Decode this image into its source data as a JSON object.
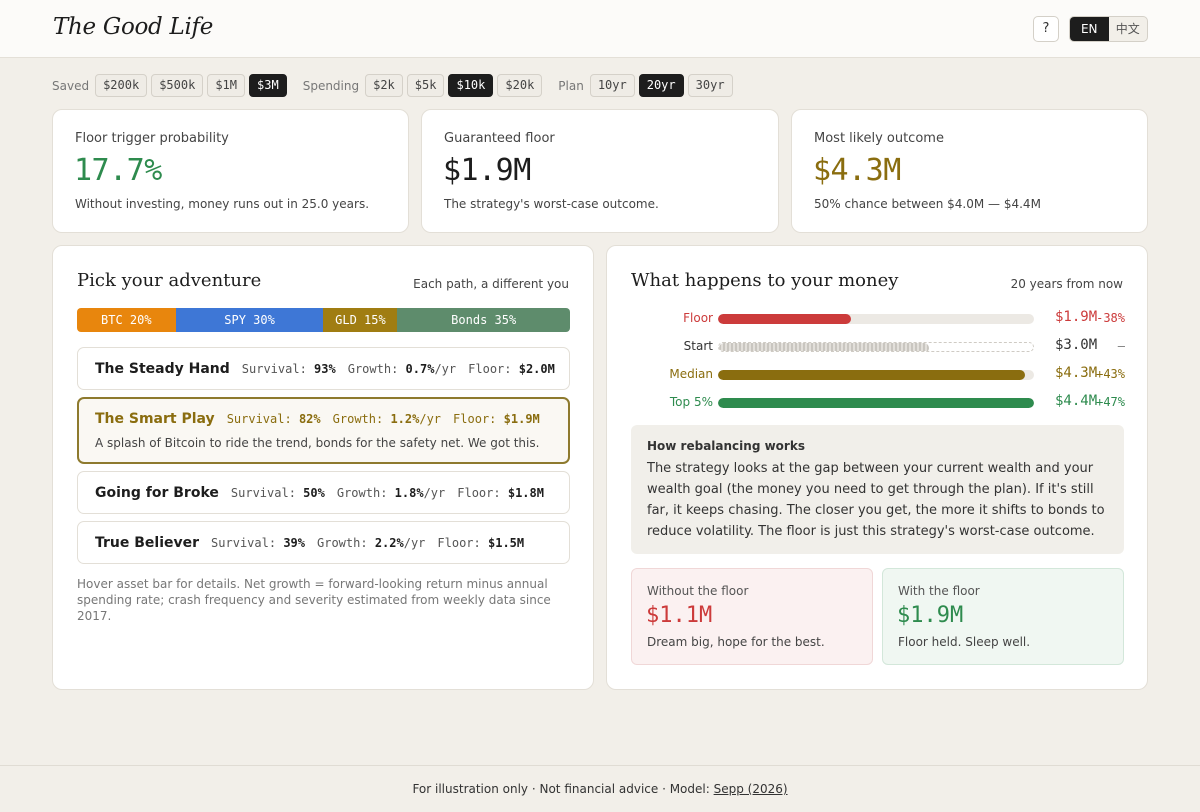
{
  "app": {
    "title": "The Good Life"
  },
  "header": {
    "help_label": "?",
    "languages": [
      "EN",
      "中文"
    ],
    "active_language": "EN"
  },
  "controls": {
    "saved": {
      "label": "Saved",
      "options": [
        "$200k",
        "$500k",
        "$1M",
        "$3M"
      ],
      "selected": "$3M"
    },
    "spending": {
      "label": "Spending",
      "options": [
        "$2k",
        "$5k",
        "$10k",
        "$20k"
      ],
      "selected": "$10k"
    },
    "plan": {
      "label": "Plan",
      "options": [
        "10yr",
        "20yr",
        "30yr"
      ],
      "selected": "20yr"
    }
  },
  "stats": [
    {
      "label": "Floor trigger probability",
      "value": "17.7%",
      "sub": "Without investing, money runs out in 25.0 years.",
      "color": "#2e8b4e"
    },
    {
      "label": "Guaranteed floor",
      "value": "$1.9M",
      "sub": "The strategy's worst-case outcome.",
      "color": "#1d1d1d"
    },
    {
      "label": "Most likely outcome",
      "value": "$4.3M",
      "sub": "50% chance between $4.0M — $4.4M",
      "color": "#8a6d0f"
    }
  ],
  "adventure": {
    "title": "Pick your adventure",
    "hint": "Each path, a different you",
    "allocation": [
      {
        "label": "BTC 20%",
        "percent": 20,
        "color": "#e8860d"
      },
      {
        "label": "SPY 30%",
        "percent": 30,
        "color": "#3e77d6"
      },
      {
        "label": "GLD 15%",
        "percent": 15,
        "color": "#a07d12"
      },
      {
        "label": "Bonds 35%",
        "percent": 35,
        "color": "#5e8c6c"
      }
    ],
    "metric_labels": {
      "survival": "Survival:",
      "growth": "Growth:",
      "floor": "Floor:",
      "per_year": "/yr"
    },
    "paths": [
      {
        "name": "The Steady Hand",
        "survival": "93%",
        "growth": "0.7%",
        "floor": "$2.0M",
        "selected": false
      },
      {
        "name": "The Smart Play",
        "survival": "82%",
        "growth": "1.2%",
        "floor": "$1.9M",
        "selected": true,
        "description": "A splash of Bitcoin to ride the trend, bonds for the safety net. We got this."
      },
      {
        "name": "Going for Broke",
        "survival": "50%",
        "growth": "1.8%",
        "floor": "$1.8M",
        "selected": false
      },
      {
        "name": "True Believer",
        "survival": "39%",
        "growth": "2.2%",
        "floor": "$1.5M",
        "selected": false
      }
    ],
    "footnote": "Hover asset bar for details. Net growth = forward-looking return minus annual spending rate; crash frequency and severity estimated from weekly data since 2017."
  },
  "outcome": {
    "title": "What happens to your money",
    "hint": "20 years from now",
    "rows": [
      {
        "label": "Floor",
        "value": "$1.9M",
        "change": "-38%",
        "fraction": 0.42,
        "color": "#cc3b3b",
        "label_color": "#cc3b3b",
        "value_color": "#cc3b3b",
        "change_color": "#cc3b3b",
        "style": "solid"
      },
      {
        "label": "Start",
        "value": "$3.0M",
        "change": "—",
        "fraction": 0.67,
        "color": "#c9c6c0",
        "label_color": "#333333",
        "value_color": "#333333",
        "change_color": "#777777",
        "style": "hatch"
      },
      {
        "label": "Median",
        "value": "$4.3M",
        "change": "+43%",
        "fraction": 0.97,
        "color": "#8a6d0f",
        "label_color": "#8a6d0f",
        "value_color": "#8a6d0f",
        "change_color": "#8a6d0f",
        "style": "solid"
      },
      {
        "label": "Top 5%",
        "value": "$4.4M",
        "change": "+47%",
        "fraction": 1.0,
        "color": "#2e8b4e",
        "label_color": "#2e8b4e",
        "value_color": "#2e8b4e",
        "change_color": "#2e8b4e",
        "style": "solid"
      }
    ],
    "info": {
      "title": "How rebalancing works",
      "body": "The strategy looks at the gap between your current wealth and your wealth goal (the money you need to get through the plan). If it's still far, it keeps chasing. The closer you get, the more it shifts to bonds to reduce volatility. The floor is just this strategy's worst-case outcome."
    },
    "compare": [
      {
        "label": "Without the floor",
        "value": "$1.1M",
        "sub": "Dream big, hope for the best.",
        "color": "#cc3b3b",
        "bg": "#fbf1f1",
        "border": "#f0d7d7"
      },
      {
        "label": "With the floor",
        "value": "$1.9M",
        "sub": "Floor held. Sleep well.",
        "color": "#2e8b4e",
        "bg": "#f0f7f2",
        "border": "#d3e7da"
      }
    ]
  },
  "footer": {
    "text": "For illustration only · Not financial advice · Model: ",
    "link": "Sepp (2026)"
  }
}
